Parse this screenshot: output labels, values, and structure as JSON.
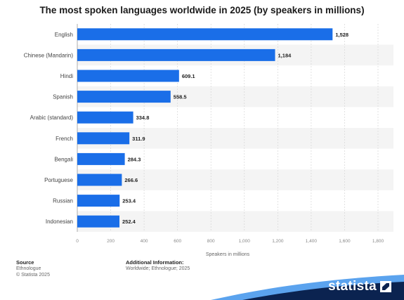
{
  "chart_data": {
    "type": "bar",
    "orientation": "horizontal",
    "title": "The most spoken languages worldwide in 2025 (by speakers in millions)",
    "categories": [
      "English",
      "Chinese (Mandarin)",
      "Hindi",
      "Spanish",
      "Arabic (standard)",
      "French",
      "Bengali",
      "Portuguese",
      "Russian",
      "Indonesian"
    ],
    "values": [
      1528,
      1184,
      609.1,
      558.5,
      334.8,
      311.9,
      284.3,
      266.6,
      253.4,
      252.4
    ],
    "value_labels": [
      "1,528",
      "1,184",
      "609.1",
      "558.5",
      "334.8",
      "311.9",
      "284.3",
      "266.6",
      "253.4",
      "252.4"
    ],
    "xlabel": "Speakers in millions",
    "xlim": [
      0,
      1800
    ],
    "xticks": [
      0,
      200,
      400,
      600,
      800,
      1000,
      1200,
      1400,
      1600,
      1800
    ],
    "xtick_labels": [
      "0",
      "200",
      "400",
      "600",
      "800",
      "1,000",
      "1,200",
      "1,400",
      "1,600",
      "1,800"
    ],
    "bar_color": "#1a6ee8",
    "grid": true,
    "legend": "none"
  },
  "footer": {
    "source_heading": "Source",
    "source_lines": [
      "Ethnologue",
      "© Statista 2025"
    ],
    "info_heading": "Additional Information:",
    "info_lines": [
      "Worldwide; Ethnologue; 2025"
    ]
  },
  "brand": {
    "name": "statista",
    "icon": "statista-logo-icon"
  }
}
